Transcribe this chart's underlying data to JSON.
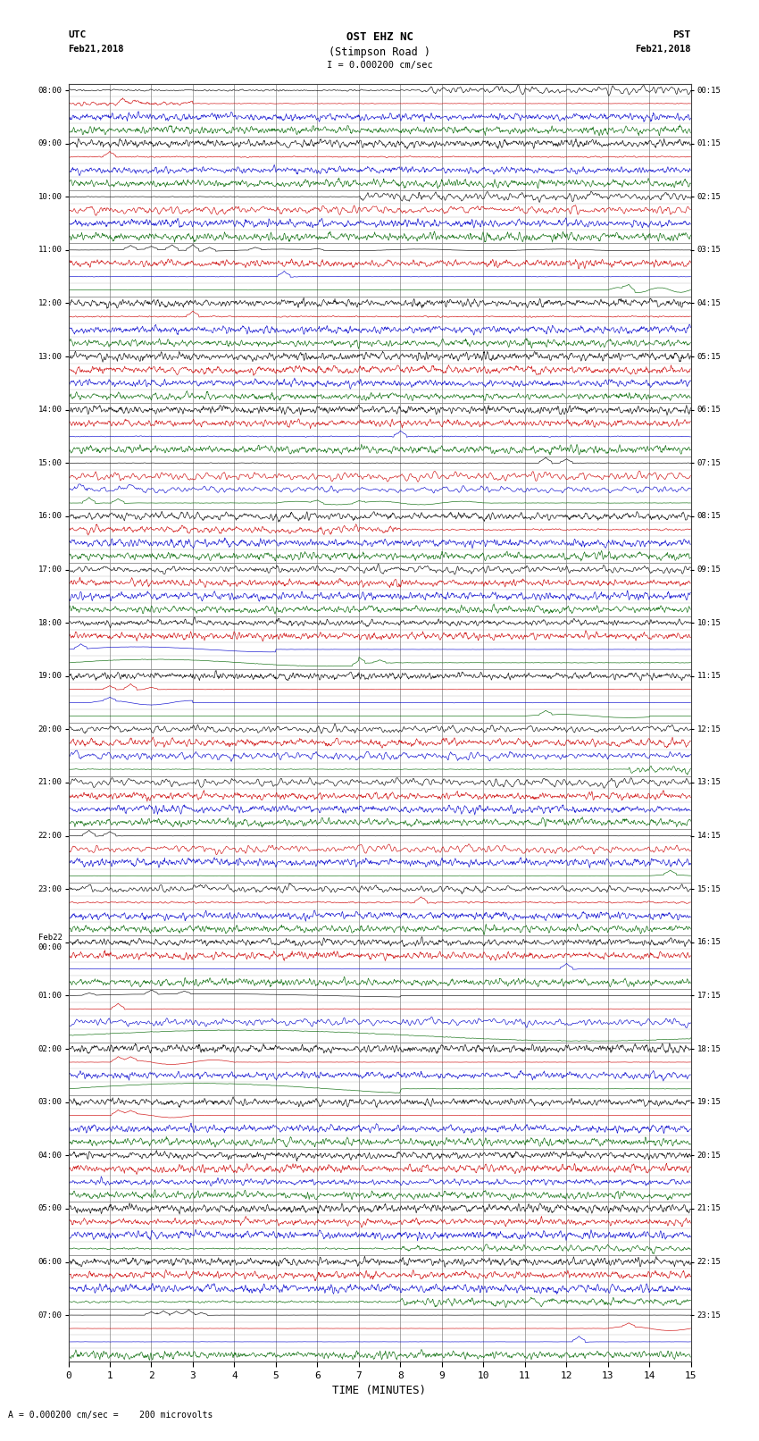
{
  "title_line1": "OST EHZ NC",
  "title_line2": "(Stimpson Road )",
  "scale_text": "I = 0.000200 cm/sec",
  "left_label_top": "UTC",
  "left_label_date": "Feb21,2018",
  "right_label_top": "PST",
  "right_label_date": "Feb21,2018",
  "xlabel": "TIME (MINUTES)",
  "footer_text": "= 0.000200 cm/sec =    200 microvolts",
  "background_color": "#ffffff",
  "xlim": [
    0,
    15
  ],
  "xticks": [
    0,
    1,
    2,
    3,
    4,
    5,
    6,
    7,
    8,
    9,
    10,
    11,
    12,
    13,
    14,
    15
  ],
  "utc_labels": [
    "08:00",
    "09:00",
    "10:00",
    "11:00",
    "12:00",
    "13:00",
    "14:00",
    "15:00",
    "16:00",
    "17:00",
    "18:00",
    "19:00",
    "20:00",
    "21:00",
    "22:00",
    "23:00",
    "Feb22\n00:00",
    "01:00",
    "02:00",
    "03:00",
    "04:00",
    "05:00",
    "06:00",
    "07:00"
  ],
  "pst_labels": [
    "00:15",
    "01:15",
    "02:15",
    "03:15",
    "04:15",
    "05:15",
    "06:15",
    "07:15",
    "08:15",
    "09:15",
    "10:15",
    "11:15",
    "12:15",
    "13:15",
    "14:15",
    "15:15",
    "16:15",
    "17:15",
    "18:15",
    "19:15",
    "20:15",
    "21:15",
    "22:15",
    "23:15"
  ],
  "row_colors_cycle": [
    "#000000",
    "#cc0000",
    "#0000cc",
    "#006600"
  ],
  "n_hours": 24,
  "rows_per_hour": 4
}
